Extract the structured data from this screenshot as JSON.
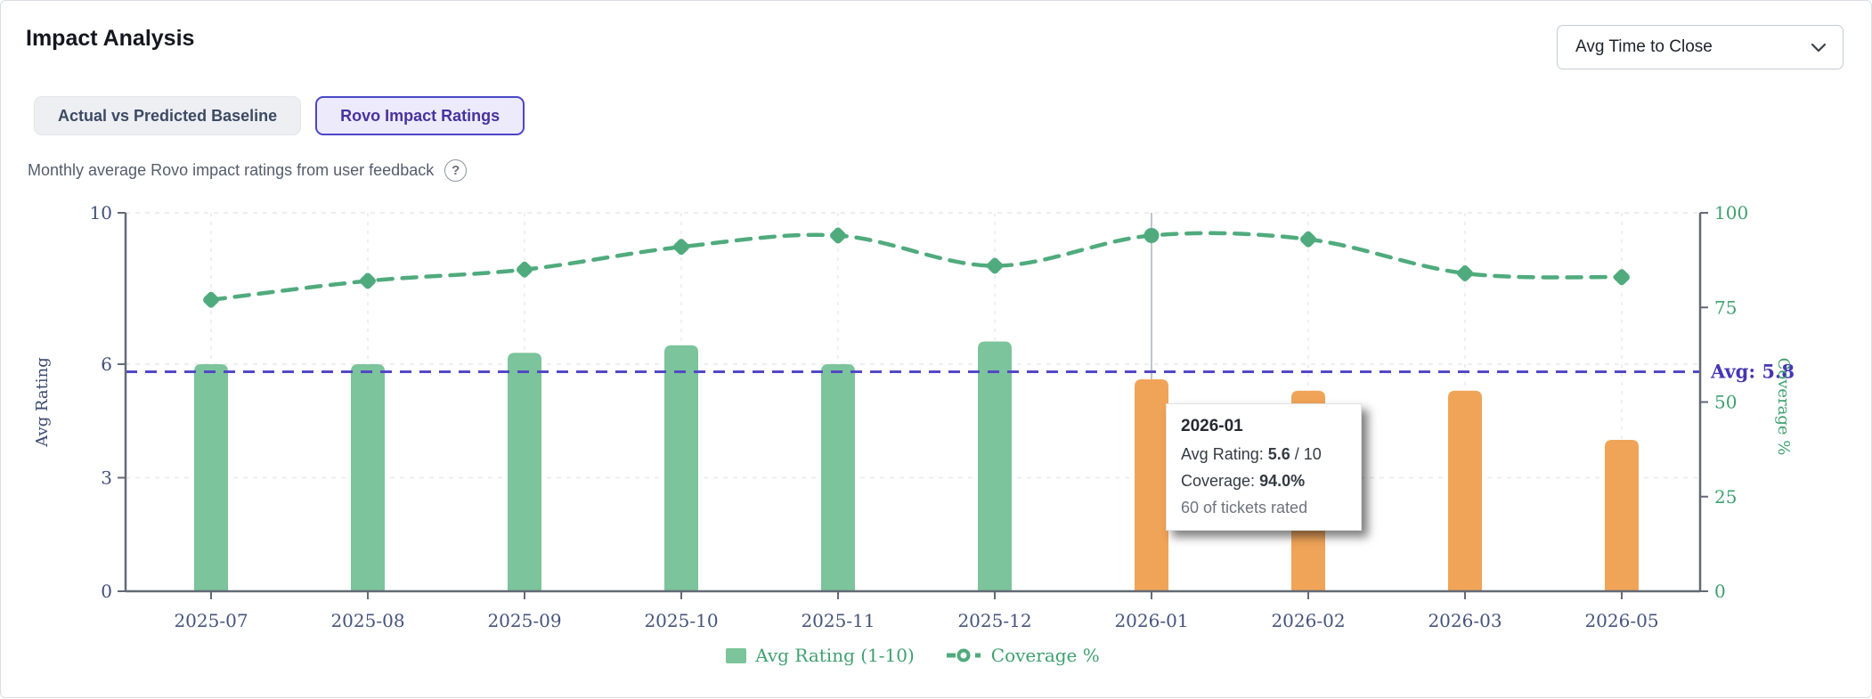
{
  "header": {
    "title": "Impact Analysis",
    "dropdown_value": "Avg Time to Close"
  },
  "tabs": [
    {
      "label": "Actual vs Predicted Baseline",
      "active": false
    },
    {
      "label": "Rovo Impact Ratings",
      "active": true
    }
  ],
  "subtitle": "Monthly average Rovo impact ratings from user feedback",
  "help_icon": "?",
  "chart_data": {
    "type": "bar",
    "categories": [
      "2025-07",
      "2025-08",
      "2025-09",
      "2025-10",
      "2025-11",
      "2025-12",
      "2026-01",
      "2026-02",
      "2026-03",
      "2026-05"
    ],
    "series": [
      {
        "name": "Avg Rating (1-10)",
        "type": "bar",
        "values": [
          6.0,
          6.0,
          6.3,
          6.5,
          6.0,
          6.6,
          5.6,
          5.3,
          5.3,
          4.0
        ],
        "axis": "left"
      },
      {
        "name": "Coverage %",
        "type": "line",
        "style": "dashed",
        "values": [
          77,
          82,
          85,
          91,
          94,
          86,
          94,
          93,
          84,
          83
        ],
        "axis": "right"
      }
    ],
    "bar_color_past": "#7cc49b",
    "bar_color_recent": "#f0a458",
    "recent_from_index": 6,
    "line_color": "#4fab7d",
    "avg_line": {
      "value": 5.8,
      "label": "Avg: 5.8",
      "color": "#5348c6",
      "label_color": "#4636b4"
    },
    "y_left": {
      "label": "Avg Rating",
      "min": 0,
      "max": 10,
      "ticks": [
        0,
        3,
        6,
        10
      ],
      "tick_color": "#42507a",
      "title_color": "#3c4a6d"
    },
    "y_right": {
      "label": "Coverage %",
      "min": 0,
      "max": 100,
      "ticks": [
        0,
        25,
        50,
        75,
        100
      ],
      "tick_color": "#3fa070",
      "title_color": "#3fa070"
    },
    "x_tick_color": "#46547c",
    "grid": true,
    "legend_position": "bottom",
    "highlighted_index": 6,
    "legend": [
      {
        "label": "Avg Rating (1-10)",
        "marker": "square"
      },
      {
        "label": "Coverage %",
        "marker": "line-circle"
      }
    ]
  },
  "tooltip": {
    "title": "2026-01",
    "rating_label": "Avg Rating: ",
    "rating_value": "5.6",
    "rating_suffix": " / 10",
    "coverage_label": "Coverage: ",
    "coverage_value": "94.0%",
    "note": "60 of tickets rated"
  }
}
